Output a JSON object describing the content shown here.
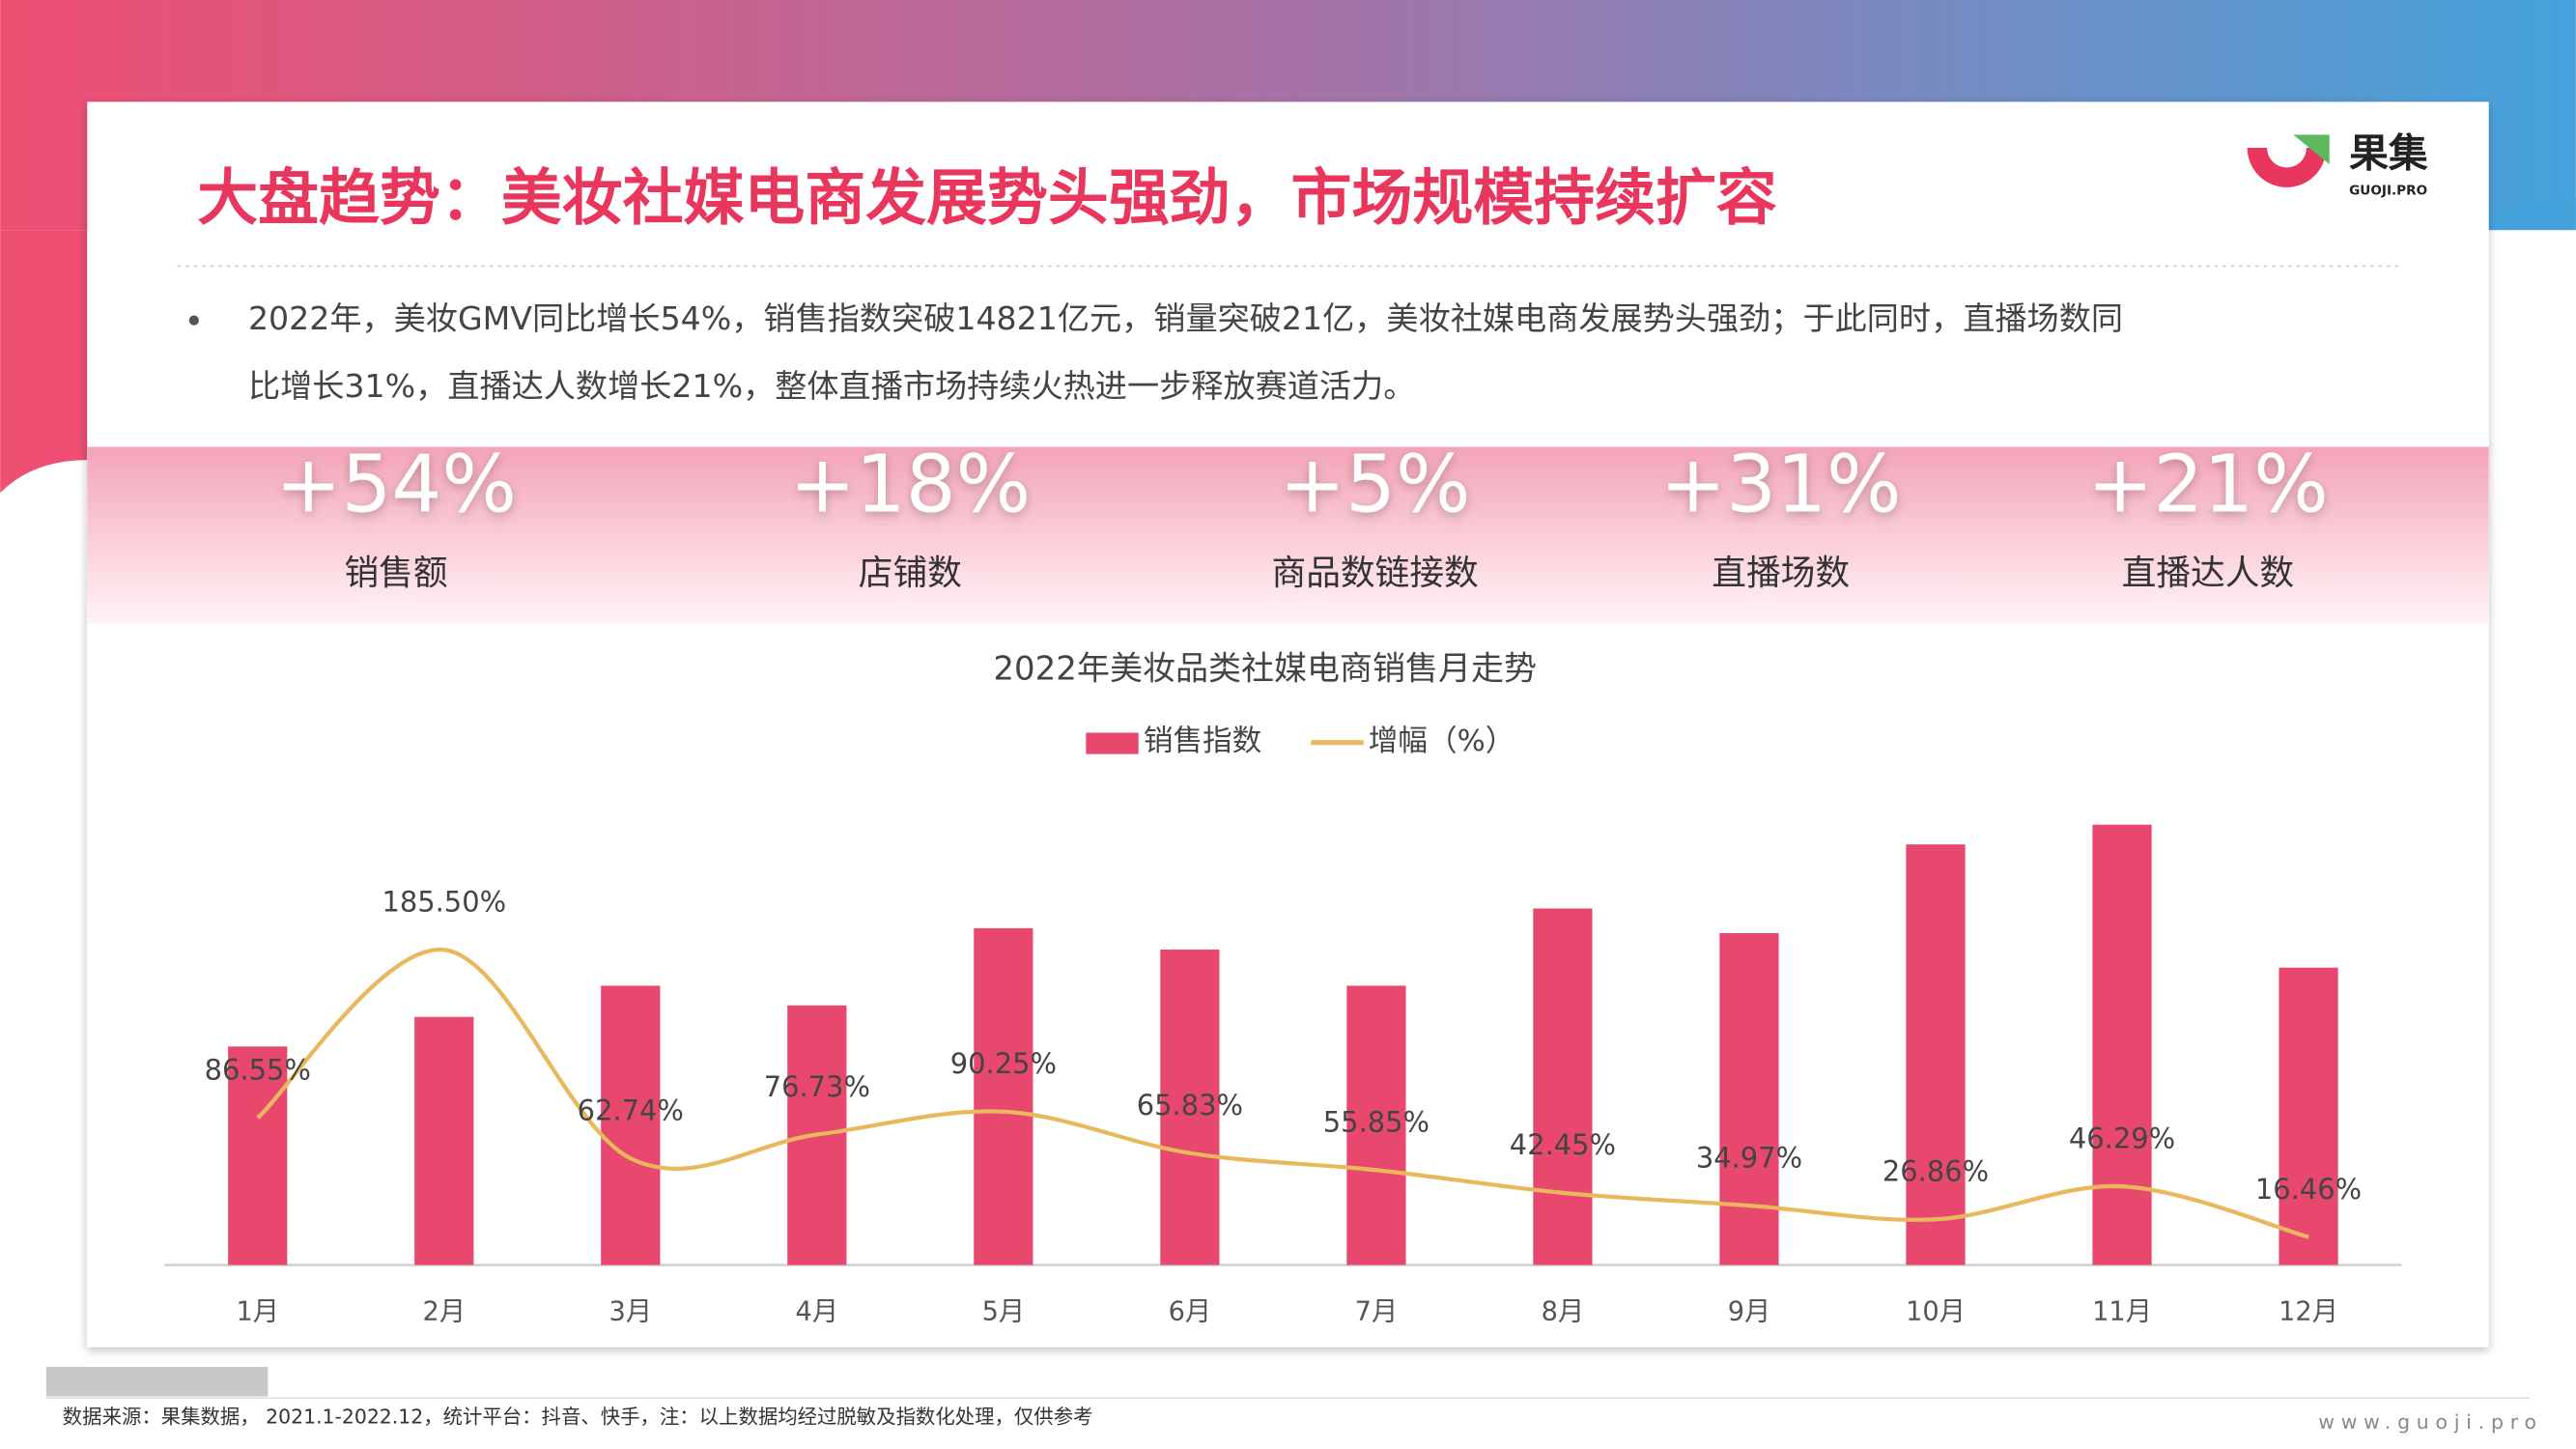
{
  "header": {
    "title": "大盘趋势：美妆社媒电商发展势头强劲，市场规模持续扩容"
  },
  "logo": {
    "name": "果集",
    "domain": "GUOJI.PRO"
  },
  "summary": {
    "lines": [
      "2022年，美妆GMV同比增长54%，销售指数突破14821亿元，销量突破21亿，美妆社媒电商发展势头强劲；于此同时，直播场数同",
      "比增长31%，直播达人数增长21%，整体直播市场持续火热进一步释放赛道活力。"
    ]
  },
  "kpis": [
    {
      "value": "+54%",
      "label": "销售额"
    },
    {
      "value": "+18%",
      "label": "店铺数"
    },
    {
      "value": "+5%",
      "label": "商品数链接数"
    },
    {
      "value": "+31%",
      "label": "直播场数"
    },
    {
      "value": "+21%",
      "label": "直播达人数"
    }
  ],
  "chart_data": {
    "type": "bar",
    "title": "2022年美妆品类社媒电商销售月走势",
    "categories": [
      "1月",
      "2月",
      "3月",
      "4月",
      "5月",
      "6月",
      "7月",
      "8月",
      "9月",
      "10月",
      "11月",
      "12月"
    ],
    "series": [
      {
        "name": "销售指数",
        "type": "bar",
        "color": "#e8476e",
        "values": [
          133,
          151,
          170,
          158,
          205,
          192,
          170,
          217,
          202,
          256,
          268,
          181
        ]
      },
      {
        "name": "增幅（%）",
        "type": "line",
        "axis": "y2",
        "color": "#e9b85c",
        "values": [
          86.55,
          185.5,
          62.74,
          76.73,
          90.25,
          65.83,
          55.85,
          42.45,
          34.97,
          26.86,
          46.29,
          16.46
        ],
        "value_labels": [
          "86.55%",
          "185.50%",
          "62.74%",
          "76.73%",
          "90.25%",
          "65.83%",
          "55.85%",
          "42.45%",
          "34.97%",
          "26.86%",
          "46.29%",
          "16.46%"
        ]
      }
    ],
    "ylim": [
      0,
      300
    ],
    "y2lim": [
      0,
      290
    ]
  },
  "footer": {
    "source": "数据来源：果集数据，  2021.1-2022.12，统计平台：抖音、快手，注：以上数据均经过脱敏及指数化处理，仅供参考",
    "website": "www.guoji.pro"
  }
}
